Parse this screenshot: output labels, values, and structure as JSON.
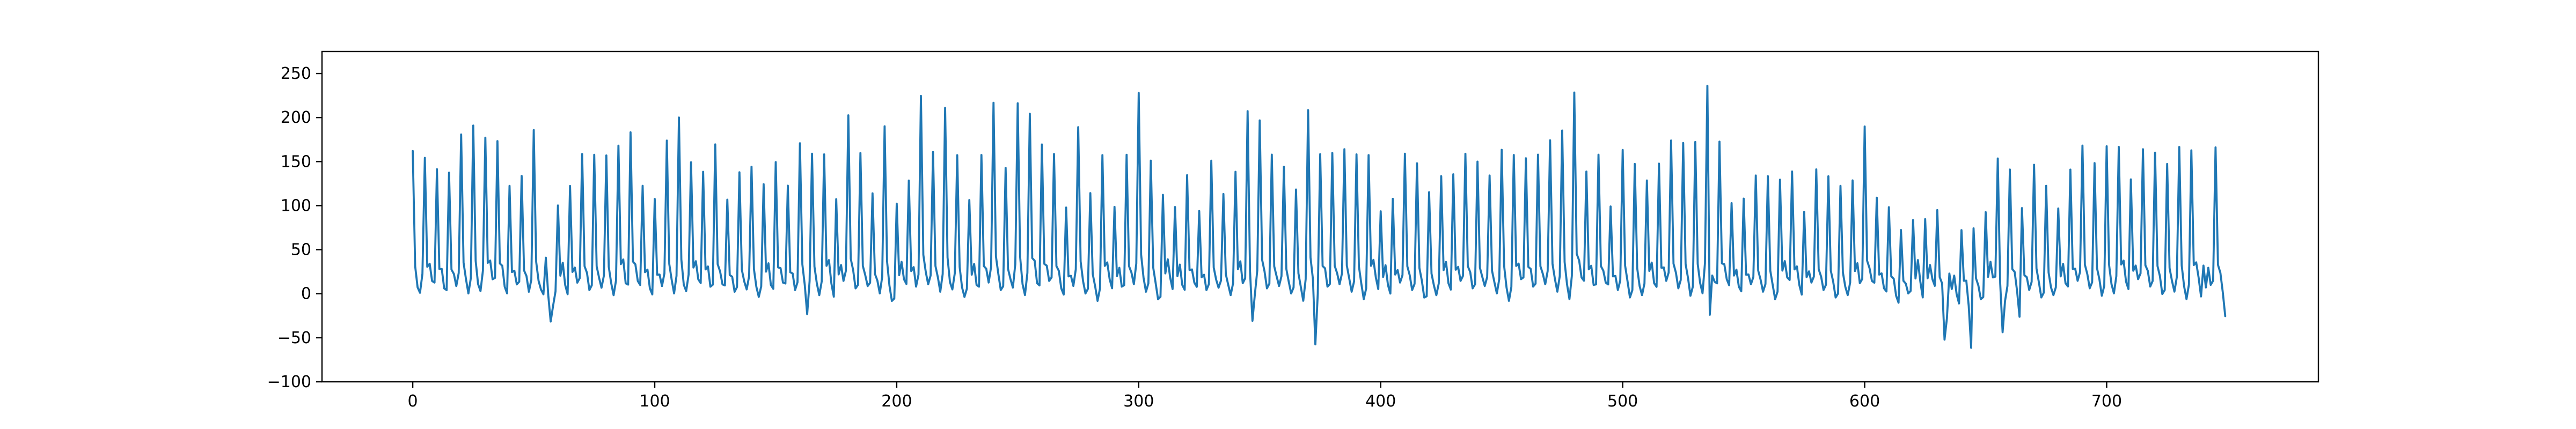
{
  "chart_data": {
    "type": "line",
    "title": "",
    "xlabel": "",
    "ylabel": "",
    "xlim": [
      -37.5,
      787.5
    ],
    "ylim": [
      -100,
      275
    ],
    "xticks": [
      0,
      100,
      200,
      300,
      400,
      500,
      600,
      700
    ],
    "yticks": [
      -100,
      -50,
      0,
      50,
      100,
      150,
      200,
      250
    ],
    "grid": false,
    "legend": "none",
    "series": [
      {
        "color": "#1f77b4",
        "x_range": [
          0,
          749
        ],
        "n_points": 750,
        "model": "periodic spikes with small bumps and dips; peak list is [x, y]",
        "baseline": 0,
        "peaks": [
          [
            0,
            162
          ],
          [
            5,
            155
          ],
          [
            10,
            143
          ],
          [
            15,
            140
          ],
          [
            20,
            182
          ],
          [
            25,
            193
          ],
          [
            30,
            178
          ],
          [
            35,
            175
          ],
          [
            40,
            125
          ],
          [
            45,
            135
          ],
          [
            50,
            188
          ],
          [
            55,
            42
          ],
          [
            60,
            102
          ],
          [
            65,
            125
          ],
          [
            70,
            160
          ],
          [
            75,
            160
          ],
          [
            80,
            158
          ],
          [
            85,
            170
          ],
          [
            90,
            186
          ],
          [
            95,
            124
          ],
          [
            100,
            110
          ],
          [
            105,
            175
          ],
          [
            110,
            202
          ],
          [
            115,
            150
          ],
          [
            120,
            140
          ],
          [
            125,
            172
          ],
          [
            130,
            108
          ],
          [
            135,
            140
          ],
          [
            140,
            145
          ],
          [
            145,
            126
          ],
          [
            150,
            152
          ],
          [
            155,
            124
          ],
          [
            160,
            173
          ],
          [
            165,
            160
          ],
          [
            170,
            160
          ],
          [
            175,
            110
          ],
          [
            180,
            204
          ],
          [
            185,
            162
          ],
          [
            190,
            115
          ],
          [
            195,
            192
          ],
          [
            200,
            105
          ],
          [
            205,
            130
          ],
          [
            210,
            227
          ],
          [
            215,
            162
          ],
          [
            220,
            213
          ],
          [
            225,
            158
          ],
          [
            230,
            108
          ],
          [
            235,
            160
          ],
          [
            240,
            218
          ],
          [
            245,
            145
          ],
          [
            250,
            217
          ],
          [
            255,
            206
          ],
          [
            260,
            172
          ],
          [
            265,
            160
          ],
          [
            270,
            100
          ],
          [
            275,
            190
          ],
          [
            280,
            116
          ],
          [
            285,
            160
          ],
          [
            290,
            100
          ],
          [
            295,
            160
          ],
          [
            300,
            229
          ],
          [
            305,
            153
          ],
          [
            310,
            115
          ],
          [
            315,
            100
          ],
          [
            320,
            137
          ],
          [
            325,
            95
          ],
          [
            330,
            153
          ],
          [
            335,
            114
          ],
          [
            340,
            140
          ],
          [
            345,
            210
          ],
          [
            350,
            198
          ],
          [
            355,
            160
          ],
          [
            360,
            145
          ],
          [
            365,
            120
          ],
          [
            370,
            211
          ],
          [
            375,
            160
          ],
          [
            380,
            162
          ],
          [
            385,
            165
          ],
          [
            390,
            160
          ],
          [
            395,
            160
          ],
          [
            400,
            95
          ],
          [
            405,
            110
          ],
          [
            410,
            160
          ],
          [
            415,
            150
          ],
          [
            420,
            118
          ],
          [
            425,
            135
          ],
          [
            430,
            138
          ],
          [
            435,
            160
          ],
          [
            440,
            152
          ],
          [
            445,
            135
          ],
          [
            450,
            165
          ],
          [
            455,
            160
          ],
          [
            460,
            155
          ],
          [
            465,
            160
          ],
          [
            470,
            175
          ],
          [
            475,
            187
          ],
          [
            480,
            231
          ],
          [
            485,
            140
          ],
          [
            490,
            160
          ],
          [
            495,
            100
          ],
          [
            500,
            165
          ],
          [
            505,
            150
          ],
          [
            510,
            130
          ],
          [
            515,
            150
          ],
          [
            520,
            175
          ],
          [
            525,
            173
          ],
          [
            530,
            175
          ],
          [
            535,
            256
          ],
          [
            540,
            175
          ],
          [
            545,
            104
          ],
          [
            550,
            110
          ],
          [
            555,
            135
          ],
          [
            560,
            135
          ],
          [
            565,
            132
          ],
          [
            570,
            140
          ],
          [
            575,
            95
          ],
          [
            580,
            142
          ],
          [
            585,
            135
          ],
          [
            590,
            125
          ],
          [
            595,
            130
          ],
          [
            600,
            192
          ],
          [
            605,
            110
          ],
          [
            610,
            100
          ],
          [
            615,
            75
          ],
          [
            620,
            85
          ],
          [
            625,
            87
          ],
          [
            630,
            96
          ],
          [
            635,
            25
          ],
          [
            640,
            75
          ],
          [
            645,
            92
          ],
          [
            650,
            95
          ],
          [
            655,
            155
          ],
          [
            660,
            143
          ],
          [
            665,
            108
          ],
          [
            670,
            148
          ],
          [
            675,
            125
          ],
          [
            680,
            98
          ],
          [
            685,
            143
          ],
          [
            690,
            169
          ],
          [
            695,
            150
          ],
          [
            700,
            170
          ],
          [
            705,
            168
          ],
          [
            710,
            132
          ],
          [
            715,
            165
          ],
          [
            720,
            162
          ],
          [
            725,
            150
          ],
          [
            730,
            168
          ],
          [
            735,
            165
          ],
          [
            740,
            33
          ],
          [
            745,
            168
          ]
        ]
      }
    ]
  }
}
